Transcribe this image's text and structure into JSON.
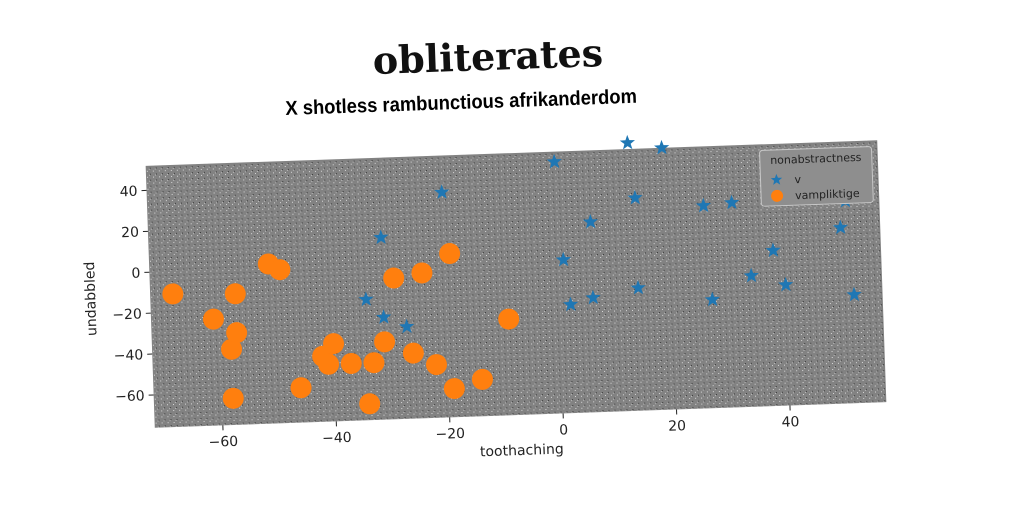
{
  "title": "obliterates",
  "chart_data": {
    "type": "scatter",
    "title": "X shotless rambunctious afrikanderdom",
    "xlabel": "toothaching",
    "ylabel": "undabbled",
    "xlim": [
      -72,
      57
    ],
    "ylim": [
      -76,
      52
    ],
    "xticks": [
      -60,
      -40,
      -20,
      0,
      20,
      40
    ],
    "yticks": [
      -60,
      -40,
      -20,
      0,
      20,
      40
    ],
    "grid": false,
    "legend": {
      "title": "nonabstractness",
      "placement": "top-right"
    },
    "series": [
      {
        "name": "v",
        "marker": "star",
        "color": "#1f77b4",
        "points": [
          [
            -20,
            34
          ],
          [
            -31,
            13
          ],
          [
            -34,
            -17
          ],
          [
            -31,
            -26
          ],
          [
            -27,
            -31
          ],
          [
            0,
            47
          ],
          [
            1,
            -1
          ],
          [
            2,
            -23
          ],
          [
            6,
            17
          ],
          [
            6,
            -20
          ],
          [
            13,
            55
          ],
          [
            14,
            28
          ],
          [
            14,
            -16
          ],
          [
            19,
            52
          ],
          [
            26,
            23
          ],
          [
            27,
            -23
          ],
          [
            31,
            24
          ],
          [
            34,
            -12
          ],
          [
            38,
            0
          ],
          [
            40,
            -17
          ],
          [
            50,
            10
          ],
          [
            51,
            23
          ],
          [
            52,
            -23
          ]
        ]
      },
      {
        "name": "vampliktige",
        "marker": "circle",
        "color": "#ff7f0e",
        "points": [
          [
            -68,
            -11
          ],
          [
            -61,
            -24
          ],
          [
            -58,
            -39
          ],
          [
            -57,
            -12
          ],
          [
            -57,
            -31
          ],
          [
            -58,
            -63
          ],
          [
            -51,
            2
          ],
          [
            -49,
            -1
          ],
          [
            -46,
            -59
          ],
          [
            -42,
            -44
          ],
          [
            -41,
            -48
          ],
          [
            -40,
            -38
          ],
          [
            -37,
            -48
          ],
          [
            -34,
            -68
          ],
          [
            -33,
            -48
          ],
          [
            -31,
            -38
          ],
          [
            -29,
            -7
          ],
          [
            -26,
            -44
          ],
          [
            -24,
            -5
          ],
          [
            -22,
            -50
          ],
          [
            -19,
            4
          ],
          [
            -19,
            -62
          ],
          [
            -14,
            -58
          ],
          [
            -9,
            -29
          ]
        ]
      }
    ]
  }
}
